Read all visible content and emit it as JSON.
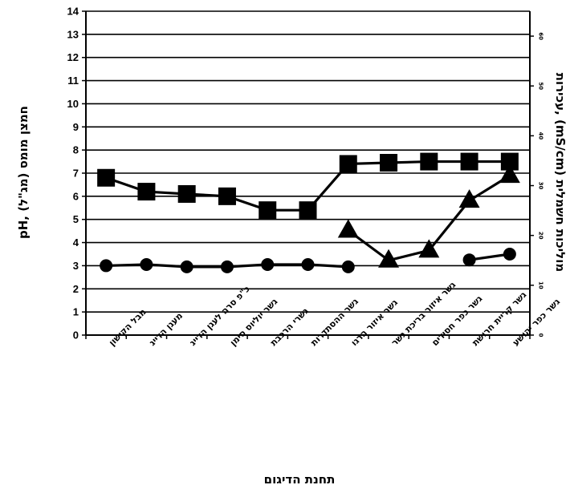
{
  "chart_data": {
    "type": "line",
    "xlabel": "תחנת הדיגום",
    "ylabel_left": "pH, חמצן מומס (מג\"ל)",
    "ylabel_right": "מוליכות חשמלית (mS/cm) ,עכירות",
    "ylim_left": [
      0,
      14
    ],
    "ylim_right": [
      0,
      65
    ],
    "yticks_left": [
      "0",
      "1",
      "2",
      "3",
      "4",
      "5",
      "6",
      "7",
      "8",
      "9",
      "10",
      "11",
      "12",
      "13",
      "14"
    ],
    "yticks_right": [
      "0",
      "10",
      "20",
      "30",
      "40",
      "50",
      "60"
    ],
    "grid": true,
    "categories": [
      "מבל הקישון",
      "מעגן הדייג",
      "כ\"פ סרה לעגן הדייג",
      "גשר יוליוס סימן",
      "גשרי הרכבת",
      "גשר ההסתדרות",
      "גשר איזור הרגו",
      "גשר איזור בריכת גשר",
      "גשר כפר חסידים",
      "גשר קריית חרושת",
      "גשר כפר יהושע"
    ],
    "series": [
      {
        "axis": "left",
        "marker": "square",
        "values": [
          6.8,
          6.2,
          6.1,
          6.0,
          5.4,
          5.4,
          7.4,
          7.45,
          7.5,
          7.5,
          7.5
        ]
      },
      {
        "axis": "left",
        "marker": "circle",
        "values": [
          3.0,
          3.05,
          2.95,
          2.95,
          3.05,
          3.05,
          2.95,
          null,
          null,
          3.25,
          3.5
        ]
      },
      {
        "axis": "right",
        "marker": "triangle",
        "values": [
          null,
          null,
          null,
          null,
          null,
          null,
          21,
          15,
          17,
          27,
          32
        ]
      }
    ]
  }
}
